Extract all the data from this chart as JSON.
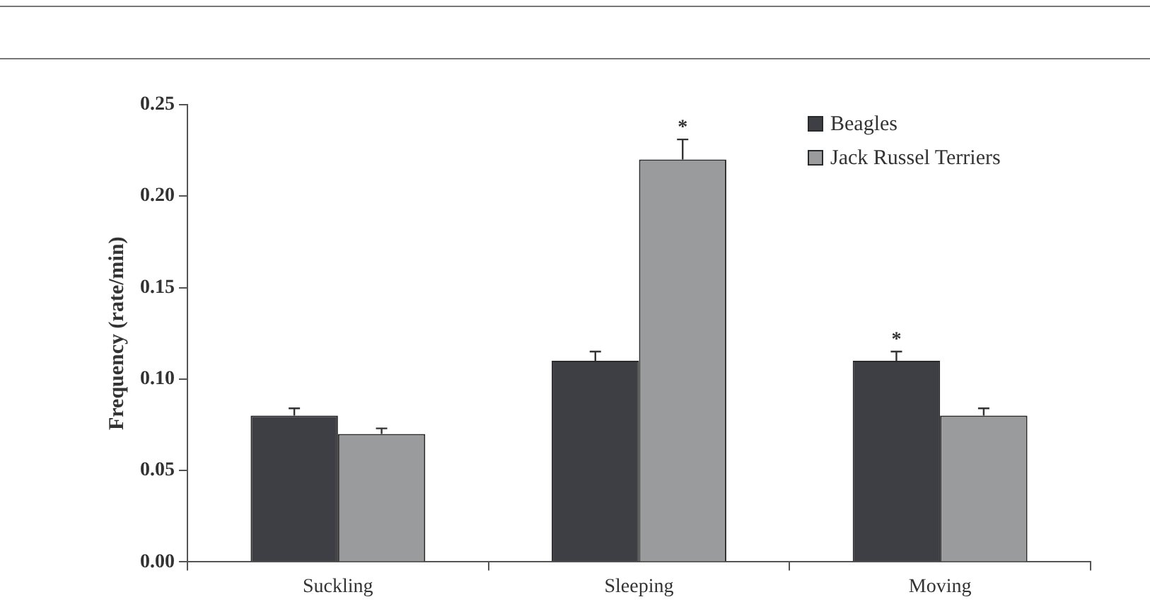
{
  "chart_data": {
    "type": "bar",
    "ylabel": "Frequency (rate/min)",
    "categories": [
      "Suckling",
      "Sleeping",
      "Moving"
    ],
    "series": [
      {
        "name": "Beagles",
        "color": "#3d3f44",
        "values": [
          0.08,
          0.11,
          0.11
        ],
        "errors": [
          [
            0.08,
            0.084
          ],
          [
            0.11,
            0.115
          ],
          [
            0.11,
            0.115
          ]
        ]
      },
      {
        "name": "Jack Russel Terriers",
        "color": "#9a9b9d",
        "values": [
          0.07,
          0.22,
          0.08
        ],
        "errors": [
          [
            0.07,
            0.073
          ],
          [
            0.22,
            0.231
          ],
          [
            0.08,
            0.084
          ]
        ]
      }
    ],
    "ylim": [
      0,
      0.25
    ],
    "yticks": [
      {
        "value": 0,
        "label": "0.00"
      },
      0.05,
      {
        "value": 0.1,
        "label": "0.10"
      },
      0.15,
      {
        "value": 0.2,
        "label": "0.20"
      },
      0.25
    ],
    "annotations": [
      {
        "text": "*",
        "x": "Sleeping",
        "y": 0.22
      },
      {
        "text": "*",
        "x": "Moving",
        "y": 0.11
      }
    ],
    "grid": false,
    "legend": "top right"
  }
}
